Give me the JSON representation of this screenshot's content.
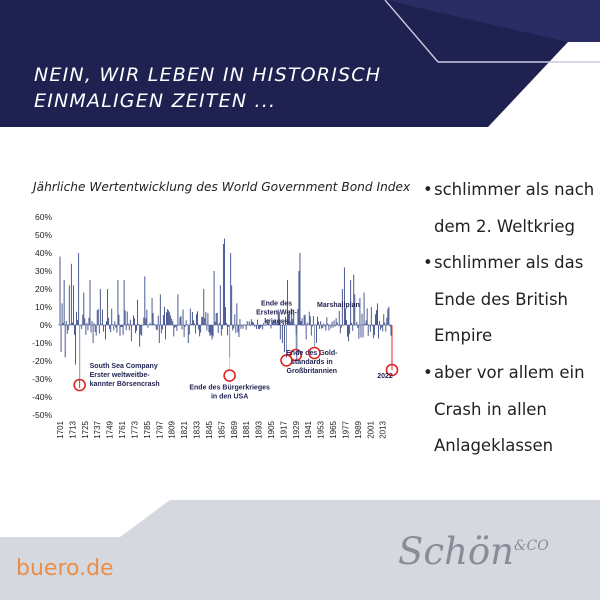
{
  "header": {
    "title_lines": [
      "NEIN, WIR LEBEN IN HISTORISCH",
      "EINMALIGEN ZEITEN ..."
    ]
  },
  "chart_data": {
    "type": "bar",
    "title": "Jährliche Wertentwicklung des World Government Bond Index",
    "x_range": [
      1701,
      2022
    ],
    "ylim": [
      -50,
      60
    ],
    "y_ticks": [
      "60%",
      "50%",
      "40%",
      "30%",
      "20%",
      "10%",
      "0%",
      "-10%",
      "-20%",
      "-30%",
      "-40%",
      "-50%"
    ],
    "x_ticks": [
      "1701",
      "1713",
      "1725",
      "1737",
      "1749",
      "1761",
      "1773",
      "1785",
      "1797",
      "1809",
      "1821",
      "1833",
      "1845",
      "1857",
      "1869",
      "1881",
      "1893",
      "1905",
      "1917",
      "1929",
      "1941",
      "1953",
      "1965",
      "1977",
      "1989",
      "2001",
      "2013"
    ],
    "series_color": "#3e4f8c",
    "annotation_color": "#e02424",
    "selected_values": [
      {
        "year": 1701,
        "value": 38
      },
      {
        "year": 1702,
        "value": -15
      },
      {
        "year": 1703,
        "value": 12
      },
      {
        "year": 1705,
        "value": 25
      },
      {
        "year": 1706,
        "value": -18
      },
      {
        "year": 1710,
        "value": 22
      },
      {
        "year": 1712,
        "value": 34
      },
      {
        "year": 1714,
        "value": 22
      },
      {
        "year": 1716,
        "value": -22
      },
      {
        "year": 1719,
        "value": 40
      },
      {
        "year": 1720,
        "value": -35
      },
      {
        "year": 1724,
        "value": 18
      },
      {
        "year": 1730,
        "value": 25
      },
      {
        "year": 1733,
        "value": -10
      },
      {
        "year": 1740,
        "value": 20
      },
      {
        "year": 1745,
        "value": -8
      },
      {
        "year": 1747,
        "value": 20
      },
      {
        "year": 1757,
        "value": 25
      },
      {
        "year": 1759,
        "value": -6
      },
      {
        "year": 1763,
        "value": 25
      },
      {
        "year": 1770,
        "value": -9
      },
      {
        "year": 1776,
        "value": 14
      },
      {
        "year": 1778,
        "value": -12
      },
      {
        "year": 1783,
        "value": 27
      },
      {
        "year": 1790,
        "value": 15
      },
      {
        "year": 1797,
        "value": -10
      },
      {
        "year": 1798,
        "value": 17
      },
      {
        "year": 1802,
        "value": 10
      },
      {
        "year": 1803,
        "value": -8
      },
      {
        "year": 1815,
        "value": 17
      },
      {
        "year": 1825,
        "value": -10
      },
      {
        "year": 1840,
        "value": 20
      },
      {
        "year": 1848,
        "value": -8
      },
      {
        "year": 1850,
        "value": 30
      },
      {
        "year": 1856,
        "value": 22
      },
      {
        "year": 1859,
        "value": 45
      },
      {
        "year": 1860,
        "value": 48
      },
      {
        "year": 1861,
        "value": 10
      },
      {
        "year": 1865,
        "value": -18
      },
      {
        "year": 1866,
        "value": 40
      },
      {
        "year": 1867,
        "value": 22
      },
      {
        "year": 1872,
        "value": 12
      },
      {
        "year": 1914,
        "value": -8
      },
      {
        "year": 1916,
        "value": -10
      },
      {
        "year": 1918,
        "value": -15
      },
      {
        "year": 1920,
        "value": -18
      },
      {
        "year": 1921,
        "value": 25
      },
      {
        "year": 1930,
        "value": -20
      },
      {
        "year": 1932,
        "value": 30
      },
      {
        "year": 1933,
        "value": 40
      },
      {
        "year": 1939,
        "value": -8
      },
      {
        "year": 1946,
        "value": 5
      },
      {
        "year": 1947,
        "value": -12
      },
      {
        "year": 1949,
        "value": -10
      },
      {
        "year": 1974,
        "value": 20
      },
      {
        "year": 1976,
        "value": 32
      },
      {
        "year": 1980,
        "value": -9
      },
      {
        "year": 1982,
        "value": 25
      },
      {
        "year": 1985,
        "value": 28
      },
      {
        "year": 1986,
        "value": 17
      },
      {
        "year": 1991,
        "value": 15
      },
      {
        "year": 1994,
        "value": -7
      },
      {
        "year": 1995,
        "value": 18
      },
      {
        "year": 2002,
        "value": 10
      },
      {
        "year": 2008,
        "value": 12
      },
      {
        "year": 2021,
        "value": -6
      },
      {
        "year": 2022,
        "value": -25
      }
    ],
    "annotations": [
      {
        "year": 1720,
        "value": -35,
        "lines": [
          "South Sea Company",
          "Erster weltweitbe-",
          "kannter Börsencrash"
        ]
      },
      {
        "year": 1865,
        "value": -32,
        "lines": [
          "Ende des Bürgerkrieges",
          "in den USA"
        ]
      },
      {
        "year": 1920,
        "value": -28,
        "lines": [
          "Ende des",
          "Ersten Welt-",
          "krieges"
        ]
      },
      {
        "year": 1929,
        "value": -25,
        "lines": [
          "Ende des Gold-",
          "standards in",
          "Großbritannien"
        ]
      },
      {
        "year": 1947,
        "value": -25,
        "lines": [
          "Marshallplan"
        ]
      },
      {
        "year": 2022,
        "value": -25,
        "lines": [
          "2022"
        ]
      }
    ]
  },
  "bullets": [
    {
      "lines": [
        "schlimmer als nach",
        "dem 2. Weltkrieg"
      ]
    },
    {
      "lines": [
        "schlimmer als das",
        "Ende des British",
        "Empire"
      ]
    },
    {
      "lines": [
        "aber vor allem ein",
        "Crash in allen",
        "Anlageklassen"
      ]
    }
  ],
  "footer": {
    "url": "buero.de",
    "brand": "Schön",
    "brand_suffix": "&CO"
  },
  "colors": {
    "navy": "#1f2150",
    "footer_grey": "#d6d8df",
    "accent_orange": "#e8904a"
  }
}
